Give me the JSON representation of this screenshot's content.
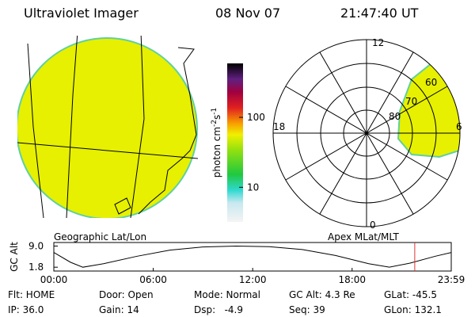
{
  "header": {
    "title": "Ultraviolet Imager",
    "date": "08 Nov 07",
    "time": "21:47:40 UT"
  },
  "left_panel": {
    "label": "Geographic Lat/Lon"
  },
  "right_panel": {
    "label": "Apex MLat/MLT",
    "labels": {
      "top": "12",
      "left": "18",
      "right": "6",
      "bottom": "0",
      "ring60": "60",
      "ring70": "70",
      "ring80": "80"
    }
  },
  "colorbar": {
    "unit": "photon cm",
    "exp1": "-2",
    "unit2": "s",
    "exp2": "-1",
    "lim": [
      3.2,
      590
    ],
    "ticks": [
      10,
      100
    ],
    "log": true
  },
  "altitude_plot": {
    "ylabel": "GC Alt",
    "ylim": [
      0.5,
      10.2
    ],
    "yticks": [
      {
        "value": 9.0,
        "label": "9.0"
      },
      {
        "value": 1.8,
        "label": "1.8"
      }
    ],
    "xlim": [
      0,
      23.983
    ],
    "xticks": [
      {
        "value": 0,
        "label": "00:00"
      },
      {
        "value": 6,
        "label": "06:00"
      },
      {
        "value": 12,
        "label": "12:00"
      },
      {
        "value": 18,
        "label": "18:00"
      },
      {
        "value": 23.983,
        "label": "23:59"
      }
    ],
    "x": [
      0,
      1,
      1.75,
      3,
      5,
      7,
      9,
      11,
      13,
      15,
      17,
      19,
      20.25,
      21.5,
      23,
      23.983
    ],
    "values": [
      6.8,
      3.5,
      1.8,
      3.0,
      5.5,
      7.6,
      8.7,
      9.0,
      8.8,
      7.8,
      5.8,
      3.0,
      1.8,
      3.2,
      5.5,
      6.8
    ],
    "marker_x": 21.78,
    "marker_color": "#e03030"
  },
  "status": [
    [
      "Flt: HOME",
      "Door: Open",
      "Mode: Normal",
      "GC Alt: 4.3 Re",
      "GLat: -45.5"
    ],
    [
      "IP: 36.0",
      "Gain: 14",
      "Dsp:   -4.9",
      "Seq: 39",
      "GLon: 132.1"
    ]
  ]
}
